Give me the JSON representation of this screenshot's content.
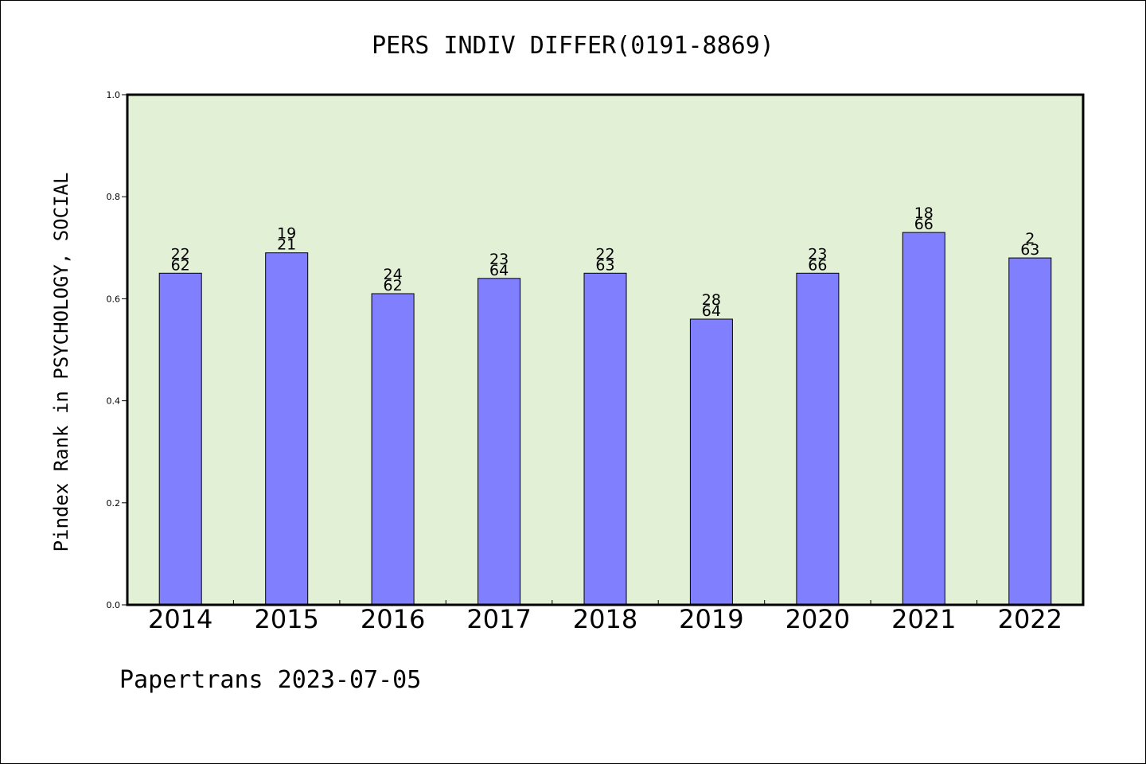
{
  "chart_data": {
    "type": "bar",
    "title": "PERS INDIV DIFFER(0191-8869)",
    "xlabel": "",
    "ylabel": "Pindex Rank in PSYCHOLOGY, SOCIAL",
    "ylim": [
      0.0,
      1.0
    ],
    "yticks": [
      "0.0",
      "0.2",
      "0.4",
      "0.6",
      "0.8",
      "1.0"
    ],
    "categories": [
      "2014",
      "2015",
      "2016",
      "2017",
      "2018",
      "2019",
      "2020",
      "2021",
      "2022"
    ],
    "values": [
      0.65,
      0.69,
      0.61,
      0.64,
      0.65,
      0.56,
      0.65,
      0.73,
      0.68
    ],
    "label_top": [
      "22",
      "19",
      "24",
      "23",
      "22",
      "28",
      "23",
      "18",
      "2"
    ],
    "label_bottom": [
      "62",
      "21",
      "62",
      "64",
      "63",
      "64",
      "66",
      "66",
      "63"
    ],
    "grid": false,
    "colors": {
      "bar_fill": "#8080ff",
      "plot_background": "#e2f0d6",
      "axis": "#000000"
    }
  },
  "footer": {
    "credit": "Papertrans 2023-07-05"
  }
}
